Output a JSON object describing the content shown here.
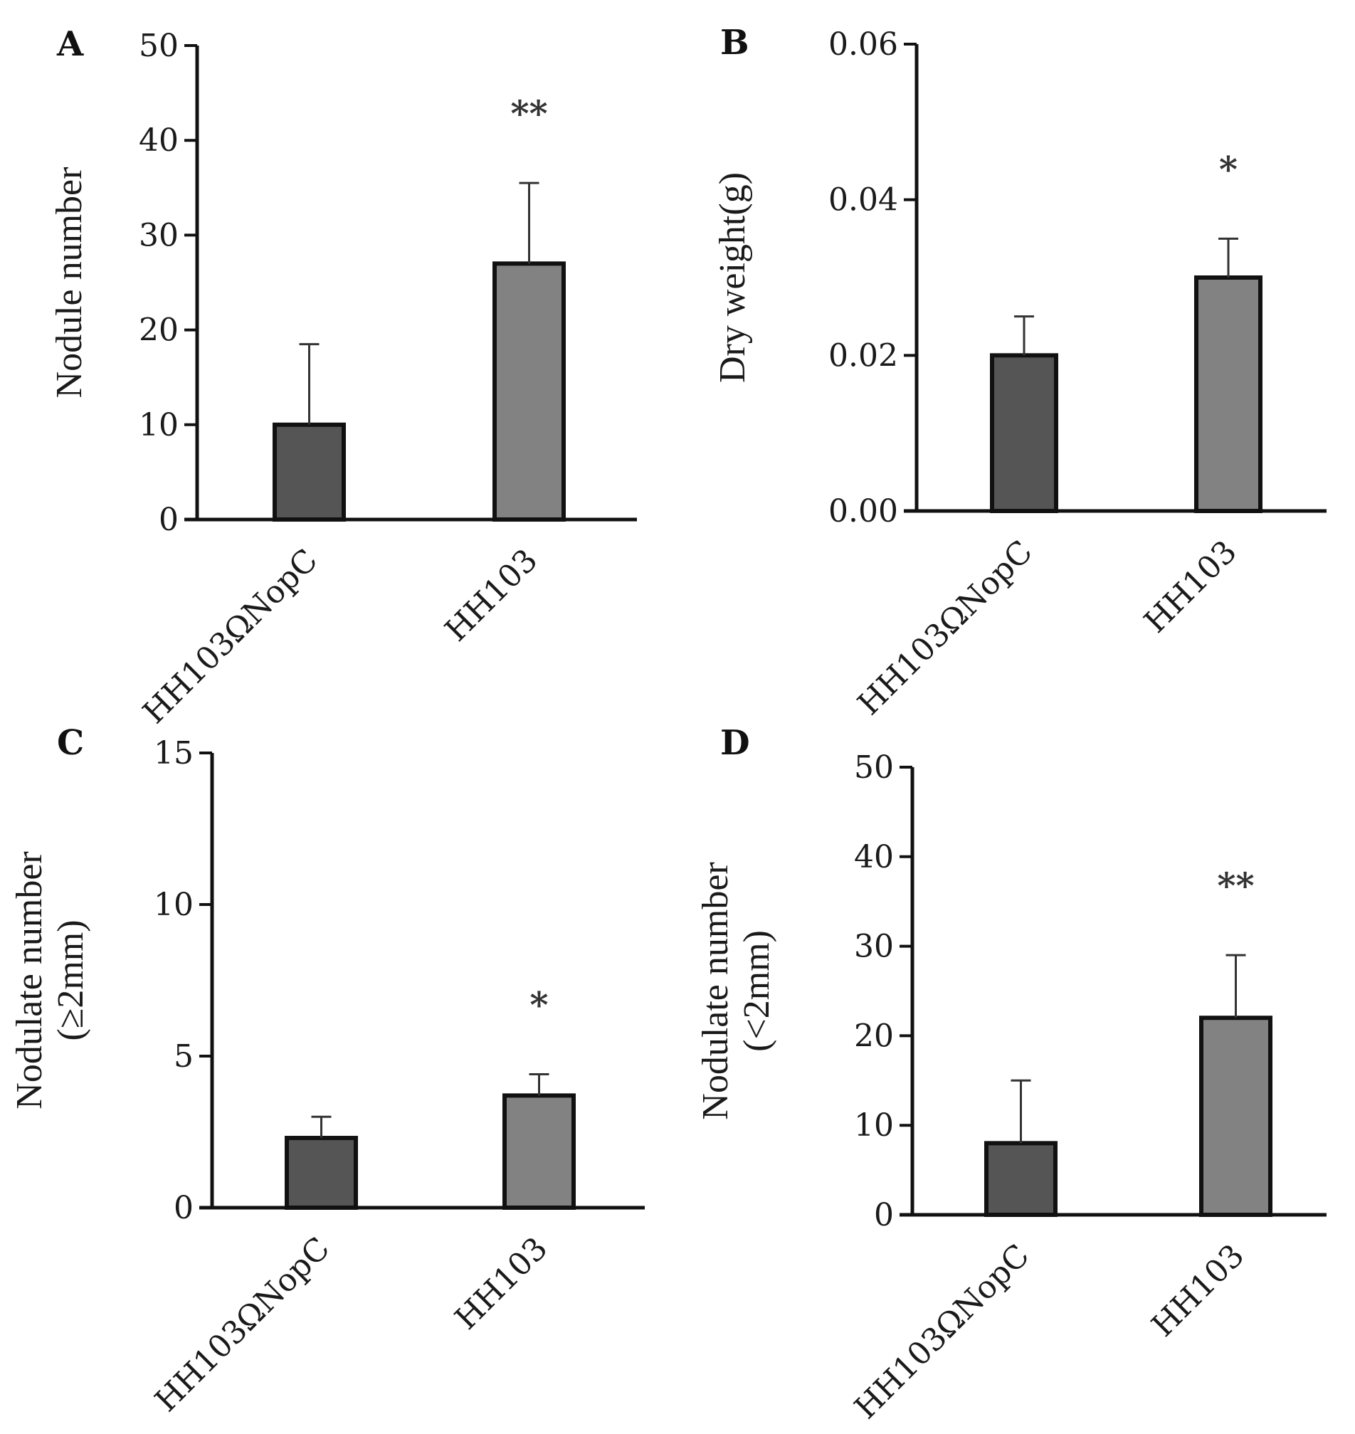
{
  "chart_data": [
    {
      "type": "bar",
      "panel": "A",
      "categories": [
        "HH103ΩNopC",
        "HH103"
      ],
      "values": [
        10,
        27
      ],
      "errors": [
        8.5,
        8.5
      ],
      "significance": [
        "",
        "**"
      ],
      "ylabel": "Nodule number",
      "ylabel_lines": [
        "Nodule number"
      ],
      "ylim": [
        0,
        50
      ],
      "yticks": [
        0,
        10,
        20,
        30,
        40,
        50
      ],
      "ytick_labels": [
        "0",
        "10",
        "20",
        "30",
        "40",
        "50"
      ],
      "colors": [
        "#555555",
        "#828282"
      ]
    },
    {
      "type": "bar",
      "panel": "B",
      "categories": [
        "HH103ΩNopC",
        "HH103"
      ],
      "values": [
        0.02,
        0.03
      ],
      "errors": [
        0.005,
        0.005
      ],
      "significance": [
        "",
        "*"
      ],
      "ylabel": "Dry weight(g)",
      "ylabel_lines": [
        "Dry weight(g)"
      ],
      "ylim": [
        0,
        0.06
      ],
      "yticks": [
        0,
        0.02,
        0.04,
        0.06
      ],
      "ytick_labels": [
        "0.00",
        "0.02",
        "0.04",
        "0.06"
      ],
      "colors": [
        "#555555",
        "#828282"
      ]
    },
    {
      "type": "bar",
      "panel": "C",
      "categories": [
        "HH103ΩNopC",
        "HH103"
      ],
      "values": [
        2.3,
        3.7
      ],
      "errors": [
        0.7,
        0.7
      ],
      "significance": [
        "",
        "*"
      ],
      "ylabel": "Nodulate number (≥2mm)",
      "ylabel_lines": [
        "Nodulate number",
        "(≥2mm)"
      ],
      "ylim": [
        0,
        15
      ],
      "yticks": [
        0,
        5,
        10,
        15
      ],
      "ytick_labels": [
        "0",
        "5",
        "10",
        "15"
      ],
      "colors": [
        "#555555",
        "#828282"
      ]
    },
    {
      "type": "bar",
      "panel": "D",
      "categories": [
        "HH103ΩNopC",
        "HH103"
      ],
      "values": [
        8,
        22
      ],
      "errors": [
        7,
        7
      ],
      "significance": [
        "",
        "**"
      ],
      "ylabel": "Nodulate number (<2mm)",
      "ylabel_lines": [
        "Nodulate number",
        "(<2mm)"
      ],
      "ylim": [
        0,
        50
      ],
      "yticks": [
        0,
        10,
        20,
        30,
        40,
        50
      ],
      "ytick_labels": [
        "0",
        "10",
        "20",
        "30",
        "40",
        "50"
      ],
      "colors": [
        "#555555",
        "#828282"
      ]
    }
  ]
}
